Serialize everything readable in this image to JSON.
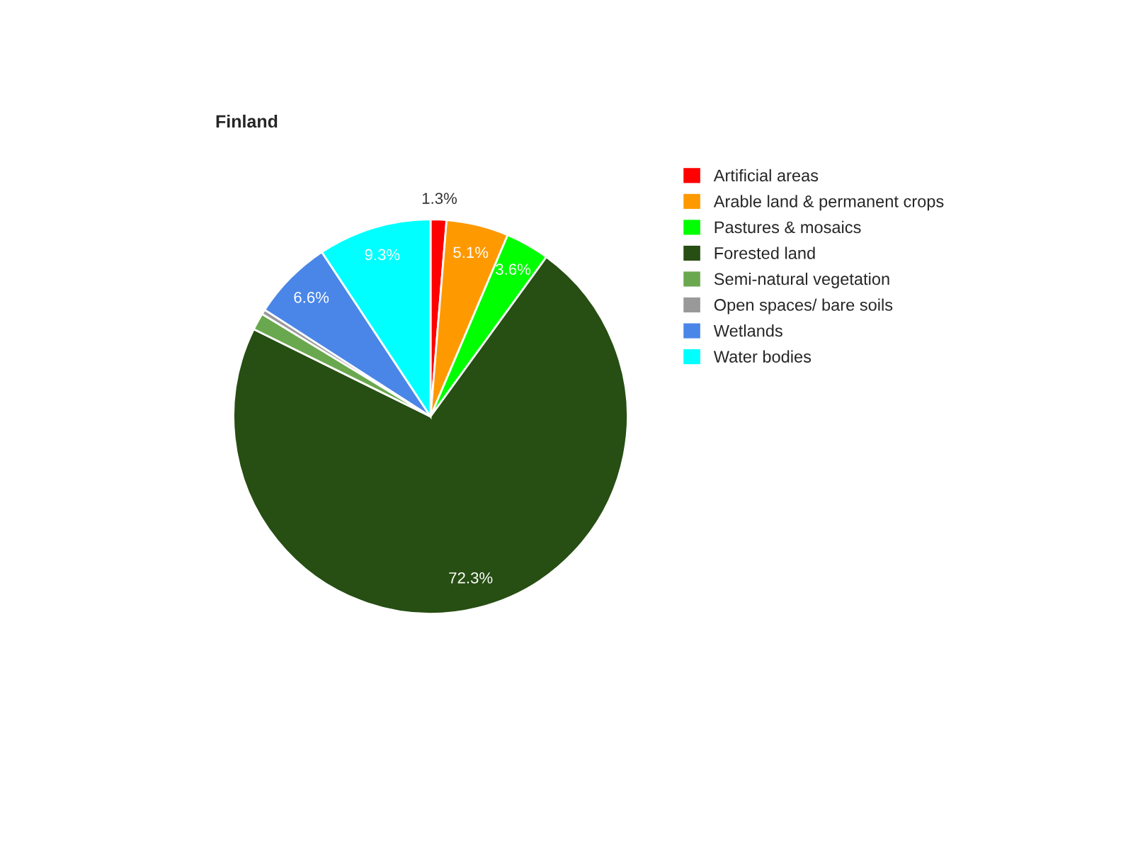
{
  "chart_data": {
    "type": "pie",
    "title": "Finland",
    "categories": [
      "Artificial areas",
      "Arable land & permanent crops",
      "Pastures & mosaics",
      "Forested land",
      "Semi-natural vegetation",
      "Open spaces/ bare soils",
      "Wetlands",
      "Water bodies"
    ],
    "values": [
      1.3,
      5.1,
      3.6,
      72.3,
      1.4,
      0.4,
      6.6,
      9.3
    ],
    "colors": [
      "#ff0000",
      "#ff9900",
      "#00ff00",
      "#274e13",
      "#6aa84f",
      "#999999",
      "#4a86e8",
      "#00ffff"
    ],
    "value_labels": [
      "1.3%",
      "5.1%",
      "3.6%",
      "72.3%",
      null,
      null,
      "6.6%",
      "9.3%"
    ],
    "legend": "right"
  }
}
